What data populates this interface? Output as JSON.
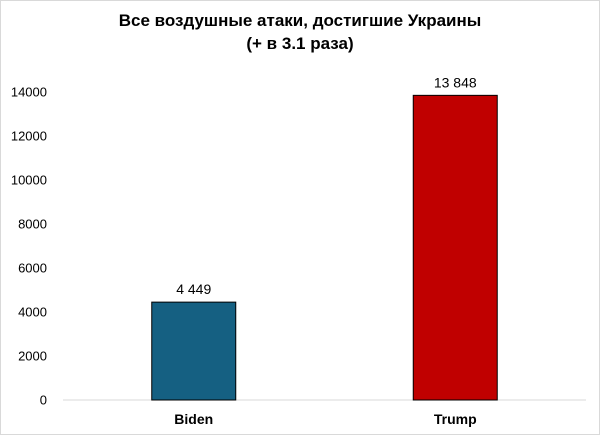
{
  "chart_data": {
    "type": "bar",
    "title": "Все воздушные атаки, достигшие Украины",
    "subtitle": "(+ в 3.1 раза)",
    "categories": [
      "Biden",
      "Trump"
    ],
    "values": [
      4449,
      13848
    ],
    "value_labels": [
      "4 449",
      "13 848"
    ],
    "bar_colors": [
      "#156082",
      "#c00000"
    ],
    "bar_edge_color": "#000000",
    "ylim": [
      0,
      14000
    ],
    "yticks": [
      0,
      2000,
      4000,
      6000,
      8000,
      10000,
      12000,
      14000
    ],
    "ytick_labels": [
      "0",
      "2000",
      "4000",
      "6000",
      "8000",
      "10000",
      "12000",
      "14000"
    ],
    "grid": false,
    "legend": "none",
    "xlabel": "",
    "ylabel": ""
  }
}
